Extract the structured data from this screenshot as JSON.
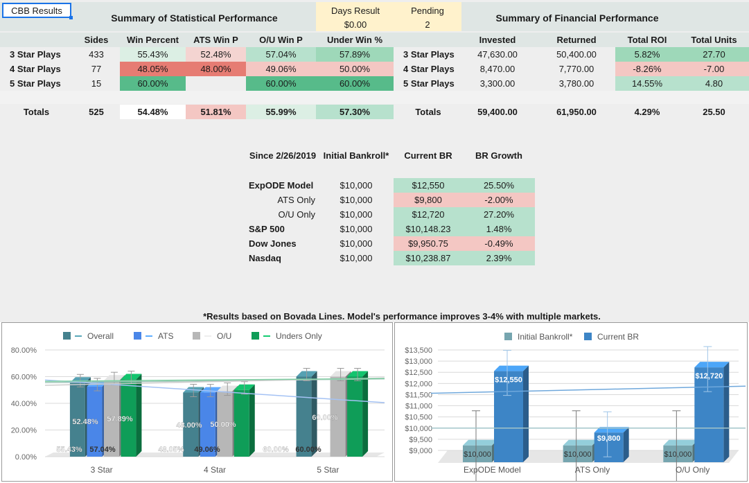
{
  "sheet": {
    "cbb_results": "CBB Results",
    "stat_title": "Summary of Statistical Performance",
    "fin_title": "Summary of Financial Performance",
    "days_result_label": "Days Result",
    "days_result_value": "$0.00",
    "pending_label": "Pending",
    "pending_value": "2",
    "footnote": "*Results based on Bovada Lines. Model's performance improves 3-4% with multiple markets."
  },
  "stats": {
    "headers": [
      "Sides",
      "Win Percent",
      "ATS Win P",
      "O/U Win P",
      "Under Win %"
    ],
    "rows": [
      {
        "label": "3 Star Plays",
        "sides": "433",
        "win": "55.43%",
        "ats": "52.48%",
        "ou": "57.04%",
        "under": "57.89%"
      },
      {
        "label": "4 Star Plays",
        "sides": "77",
        "win": "48.05%",
        "ats": "48.00%",
        "ou": "49.06%",
        "under": "50.00%"
      },
      {
        "label": "5 Star Plays",
        "sides": "15",
        "win": "60.00%",
        "ats": "",
        "ou": "60.00%",
        "under": "60.00%"
      }
    ],
    "totals": {
      "label": "Totals",
      "sides": "525",
      "win": "54.48%",
      "ats": "51.81%",
      "ou": "55.99%",
      "under": "57.30%"
    }
  },
  "finance": {
    "headers": [
      "Invested",
      "Returned",
      "Total ROI",
      "Total Units"
    ],
    "rows": [
      {
        "label": "3 Star Plays",
        "invested": "47,630.00",
        "returned": "50,400.00",
        "roi": "5.82%",
        "units": "27.70"
      },
      {
        "label": "4 Star Plays",
        "invested": "8,470.00",
        "returned": "7,770.00",
        "roi": "-8.26%",
        "units": "-7.00"
      },
      {
        "label": "5 Star Plays",
        "invested": "3,300.00",
        "returned": "3,780.00",
        "roi": "14.55%",
        "units": "4.80"
      }
    ],
    "totals": {
      "label": "Totals",
      "invested": "59,400.00",
      "returned": "61,950.00",
      "roi": "4.29%",
      "units": "25.50"
    }
  },
  "bankroll": {
    "headers": [
      "Since 2/26/2019",
      "Initial Bankroll*",
      "Current BR",
      "BR Growth"
    ],
    "rows": [
      {
        "label": "ExpODE Model",
        "initial": "$10,000",
        "current": "$12,550",
        "growth": "25.50%"
      },
      {
        "label": "ATS Only",
        "initial": "$10,000",
        "current": "$9,800",
        "growth": "-2.00%"
      },
      {
        "label": "O/U Only",
        "initial": "$10,000",
        "current": "$12,720",
        "growth": "27.20%"
      },
      {
        "label": "S&P 500",
        "initial": "$10,000",
        "current": "$10,148.23",
        "growth": "1.48%"
      },
      {
        "label": "Dow Jones",
        "initial": "$10,000",
        "current": "$9,950.75",
        "growth": "-0.49%"
      },
      {
        "label": "Nasdaq",
        "initial": "$10,000",
        "current": "$10,238.87",
        "growth": "2.39%"
      }
    ]
  },
  "colors": {
    "green_strong": "#57bb8a",
    "green_mid": "#9ed8b9",
    "green_light": "#b7e1cd",
    "green_pale": "#dcefe4",
    "red_strong": "#e67c73",
    "red_light": "#f4c7c3",
    "header_band": "#dfe6e4",
    "pending_band": "#fff2cc",
    "overall": "#45818e",
    "ats": "#4a86e8",
    "ou": "#b7b7b7",
    "under": "#0f9d58",
    "initial": "#76a5af",
    "current": "#3d85c6"
  },
  "chart_data": [
    {
      "type": "bar",
      "categories": [
        "3 Star",
        "4 Star",
        "5 Star"
      ],
      "series": [
        {
          "name": "Overall",
          "values": [
            55.43,
            48.05,
            60.0
          ],
          "labels": [
            "55.43%",
            "48.05%",
            "60.00%"
          ]
        },
        {
          "name": "ATS",
          "values": [
            52.48,
            48.0,
            null
          ],
          "labels": [
            "52.48%",
            "48.00%",
            ""
          ]
        },
        {
          "name": "O/U",
          "values": [
            57.04,
            49.06,
            60.0
          ],
          "labels": [
            "57.04%",
            "49.06%",
            "60.00%"
          ]
        },
        {
          "name": "Unders Only",
          "values": [
            57.89,
            50.0,
            60.0
          ],
          "labels": [
            "57.89%",
            "50.00%",
            "60.00%"
          ]
        }
      ],
      "legend": [
        "Overall",
        "ATS",
        "O/U",
        "Unders Only"
      ],
      "yticks": [
        "0.00%",
        "20.00%",
        "40.00%",
        "60.00%",
        "80.00%"
      ],
      "ylim": [
        0,
        80
      ],
      "trendlines": true,
      "error_bars": true,
      "grid": true,
      "legend_position": "top"
    },
    {
      "type": "bar",
      "categories": [
        "ExpODE Model",
        "ATS Only",
        "O/U Only"
      ],
      "series": [
        {
          "name": "Initial Bankroll*",
          "values": [
            10000,
            10000,
            10000
          ],
          "labels": [
            "$10,000",
            "$10,000",
            "$10,000"
          ]
        },
        {
          "name": "Current BR",
          "values": [
            12550,
            9800,
            12720
          ],
          "labels": [
            "$12,550",
            "$9,800",
            "$12,720"
          ]
        }
      ],
      "legend": [
        "Initial Bankroll*",
        "Current BR"
      ],
      "yticks": [
        "$9,000",
        "$9,500",
        "$10,000",
        "$10,500",
        "$11,000",
        "$11,500",
        "$12,000",
        "$12,500",
        "$13,000",
        "$13,500"
      ],
      "ylim": [
        9000,
        13500
      ],
      "trendlines": true,
      "error_bars": true,
      "grid": true,
      "legend_position": "top"
    }
  ]
}
